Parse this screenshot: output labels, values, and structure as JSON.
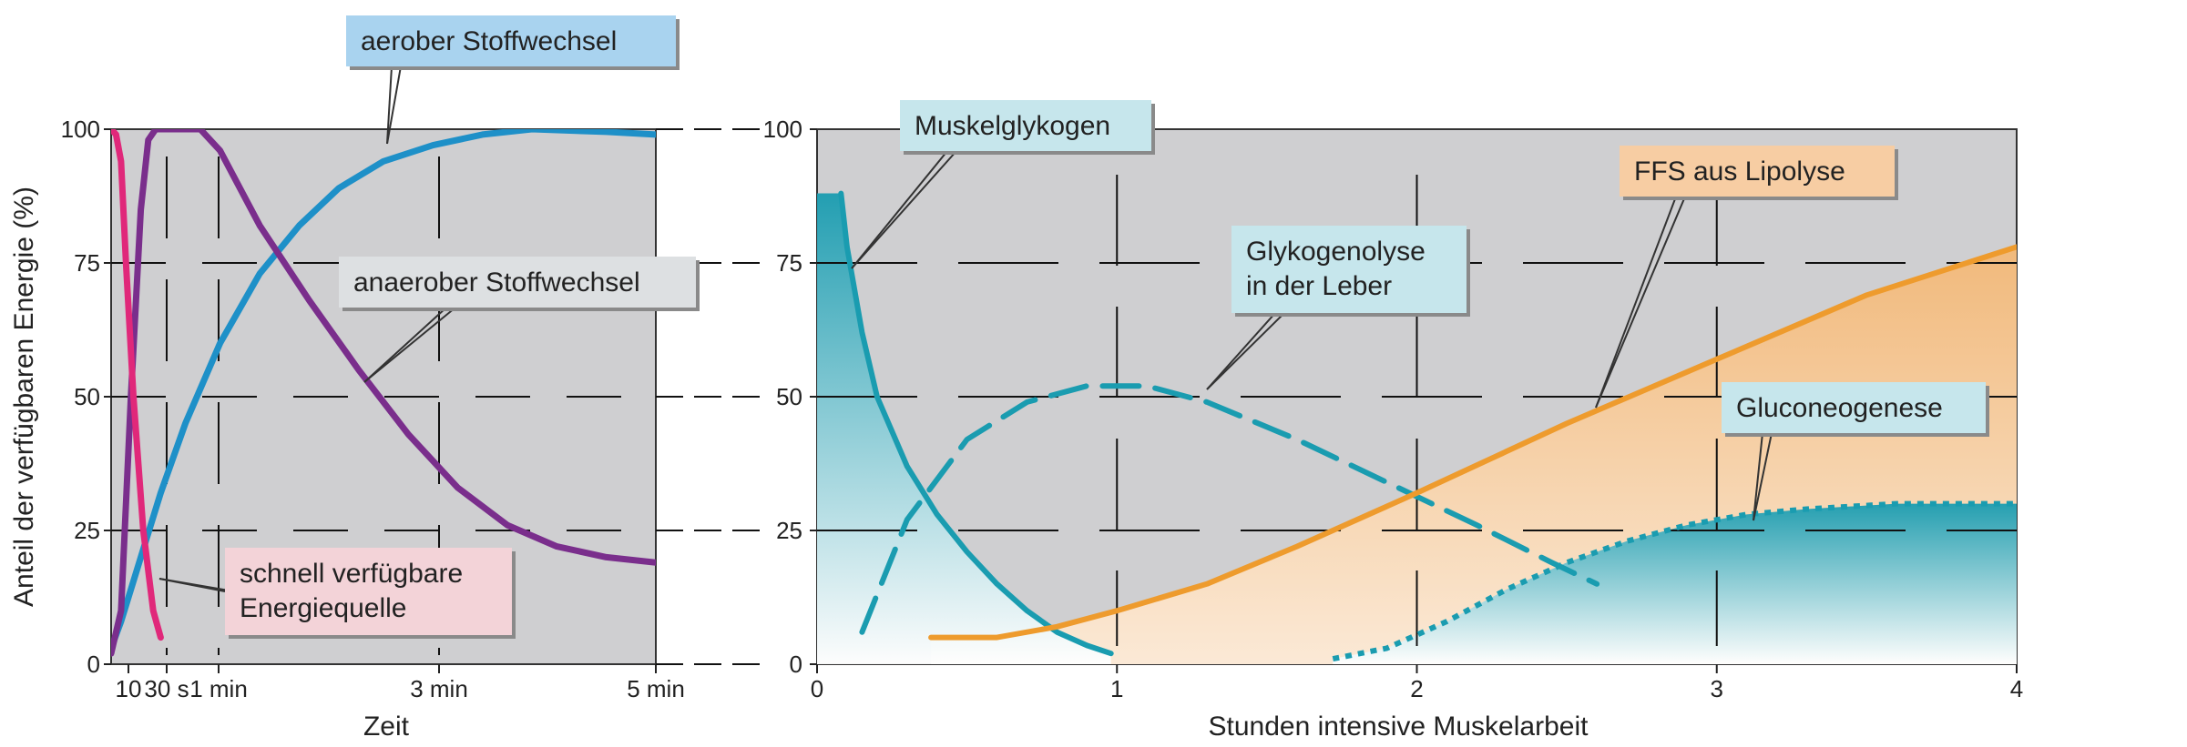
{
  "colors": {
    "panel_bg": "#cfcfd1",
    "aerob": "#1e90c8",
    "anaerob": "#7a2e8c",
    "schnell": "#e0287a",
    "muskelglykogen": "#1a9cb0",
    "leber": "#1a9cb0",
    "ffs": "#ee9b2d",
    "gluconeo": "#1a9cb0",
    "label_blue_bg": "#a9d3ef",
    "label_gray_bg": "#dde0e2",
    "label_pink_bg": "#f3d3d8",
    "label_teal_bg": "#c6e6ec",
    "label_orange_bg": "#f7cda3"
  },
  "chart_data": [
    {
      "type": "line",
      "xlabel": "Zeit",
      "ylabel": "Anteil der verfügbaren Energie (%)",
      "ylim": [
        0,
        100
      ],
      "x_tick_labels": [
        "10",
        "30 s",
        "1 min",
        "3 min",
        "5 min"
      ],
      "y_tick_labels": [
        "0",
        "25",
        "50",
        "75",
        "100"
      ],
      "y_ticks": [
        0,
        25,
        50,
        75,
        100
      ],
      "grid": true,
      "series": [
        {
          "name": "aerober Stoffwechsel",
          "values": [
            [
              0,
              3
            ],
            [
              0.02,
              8
            ],
            [
              0.06,
              20
            ],
            [
              0.1,
              32
            ],
            [
              0.15,
              45
            ],
            [
              0.22,
              60
            ],
            [
              0.3,
              73
            ],
            [
              0.38,
              82
            ],
            [
              0.46,
              89
            ],
            [
              0.55,
              94
            ],
            [
              0.65,
              97
            ],
            [
              0.75,
              99
            ],
            [
              0.85,
              100
            ],
            [
              1.0,
              99.5
            ],
            [
              1.1,
              99
            ]
          ]
        },
        {
          "name": "anaerober Stoffwechsel",
          "values": [
            [
              0,
              2
            ],
            [
              0.02,
              10
            ],
            [
              0.04,
              50
            ],
            [
              0.06,
              85
            ],
            [
              0.075,
              98
            ],
            [
              0.09,
              100
            ],
            [
              0.18,
              100
            ],
            [
              0.22,
              96
            ],
            [
              0.3,
              82
            ],
            [
              0.4,
              68
            ],
            [
              0.5,
              55
            ],
            [
              0.6,
              43
            ],
            [
              0.7,
              33
            ],
            [
              0.8,
              26
            ],
            [
              0.9,
              22
            ],
            [
              1.0,
              20
            ],
            [
              1.1,
              19
            ]
          ]
        },
        {
          "name": "schnell verfügbare Energiequelle",
          "values": [
            [
              0,
              100
            ],
            [
              0.01,
              99
            ],
            [
              0.02,
              94
            ],
            [
              0.03,
              75
            ],
            [
              0.045,
              50
            ],
            [
              0.065,
              25
            ],
            [
              0.085,
              10
            ],
            [
              0.1,
              5
            ]
          ]
        }
      ],
      "annotations": [
        {
          "lines": [
            "aerober Stoffwechsel"
          ]
        },
        {
          "lines": [
            "anaerober Stoffwechsel"
          ]
        },
        {
          "lines": [
            "schnell verfügbare",
            "Energiequelle"
          ]
        }
      ]
    },
    {
      "type": "line",
      "xlabel": "Stunden intensive Muskelarbeit",
      "xlim": [
        0,
        4
      ],
      "ylim": [
        0,
        100
      ],
      "x_tick_labels": [
        "0",
        "1",
        "2",
        "3",
        "4"
      ],
      "x_ticks": [
        0,
        1,
        2,
        3,
        4
      ],
      "y_tick_labels": [
        "0",
        "25",
        "50",
        "75",
        "100"
      ],
      "y_ticks": [
        0,
        25,
        50,
        75,
        100
      ],
      "grid": true,
      "series": [
        {
          "name": "Muskelglykogen",
          "style": "solid",
          "values": [
            [
              0.08,
              88
            ],
            [
              0.1,
              78
            ],
            [
              0.15,
              62
            ],
            [
              0.2,
              50
            ],
            [
              0.3,
              37
            ],
            [
              0.4,
              28
            ],
            [
              0.5,
              21
            ],
            [
              0.6,
              15
            ],
            [
              0.7,
              10
            ],
            [
              0.8,
              6
            ],
            [
              0.9,
              3.5
            ],
            [
              0.98,
              2
            ]
          ]
        },
        {
          "name": "Glykogenolyse in der Leber",
          "style": "dashed",
          "values": [
            [
              0.15,
              6
            ],
            [
              0.3,
              27
            ],
            [
              0.5,
              42
            ],
            [
              0.7,
              49
            ],
            [
              0.9,
              52
            ],
            [
              1.1,
              52
            ],
            [
              1.3,
              49
            ],
            [
              1.6,
              42
            ],
            [
              1.9,
              34
            ],
            [
              2.2,
              26
            ],
            [
              2.45,
              19
            ],
            [
              2.6,
              15
            ]
          ]
        },
        {
          "name": "FFS aus Lipolyse",
          "style": "solid",
          "values": [
            [
              0.38,
              5
            ],
            [
              0.6,
              5
            ],
            [
              0.8,
              7
            ],
            [
              1.0,
              10
            ],
            [
              1.3,
              15
            ],
            [
              1.6,
              22
            ],
            [
              2.0,
              32
            ],
            [
              2.5,
              45
            ],
            [
              3.0,
              57
            ],
            [
              3.5,
              69
            ],
            [
              4.0,
              78
            ]
          ]
        },
        {
          "name": "Gluconeogenese",
          "style": "dotted",
          "values": [
            [
              1.72,
              1
            ],
            [
              1.9,
              3
            ],
            [
              2.1,
              8
            ],
            [
              2.3,
              14
            ],
            [
              2.5,
              19
            ],
            [
              2.7,
              23
            ],
            [
              2.9,
              26
            ],
            [
              3.1,
              28
            ],
            [
              3.3,
              29
            ],
            [
              3.6,
              30
            ],
            [
              4.0,
              30
            ]
          ]
        }
      ],
      "annotations": [
        {
          "lines": [
            "Muskelglykogen"
          ]
        },
        {
          "lines": [
            "Glykogenolyse",
            "in der Leber"
          ]
        },
        {
          "lines": [
            "FFS aus Lipolyse"
          ]
        },
        {
          "lines": [
            "Gluconeogenese"
          ]
        }
      ]
    }
  ]
}
